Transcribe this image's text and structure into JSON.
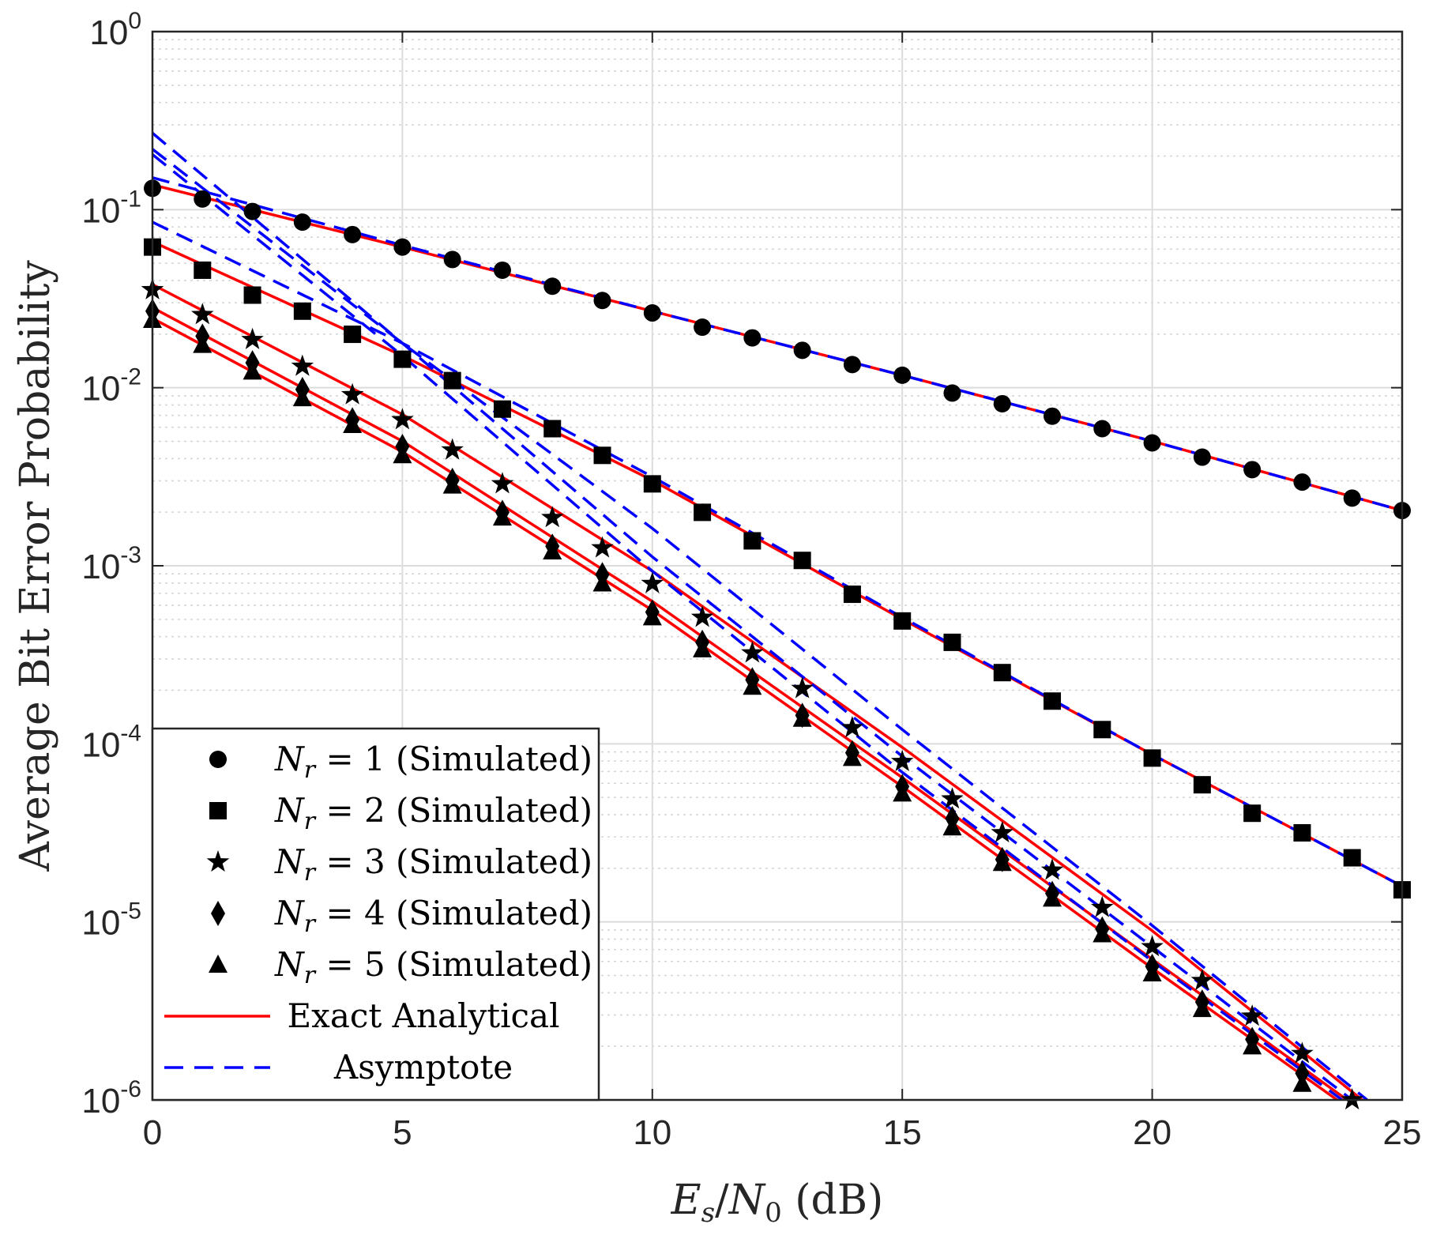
{
  "chart_data": {
    "type": "line",
    "title": "",
    "xlabel": "Es/N0 (dB)",
    "ylabel": "Average Bit Error Probability",
    "xlim": [
      0,
      25
    ],
    "ylim_log10": [
      -6,
      0
    ],
    "y_scale": "log",
    "grid": true,
    "minor_grid": true,
    "legend_position": "bottom-left",
    "x_ticks": [
      0,
      5,
      10,
      15,
      20,
      25
    ],
    "y_tick_labels": [
      {
        "base": "10",
        "exp": "0"
      },
      {
        "base": "10",
        "exp": "-1"
      },
      {
        "base": "10",
        "exp": "-2"
      },
      {
        "base": "10",
        "exp": "-3"
      },
      {
        "base": "10",
        "exp": "-4"
      },
      {
        "base": "10",
        "exp": "-5"
      },
      {
        "base": "10",
        "exp": "-6"
      }
    ],
    "legend": [
      {
        "label": "N_r = 1 (Simulated)",
        "marker": "circle"
      },
      {
        "label": "N_r = 2 (Simulated)",
        "marker": "square"
      },
      {
        "label": "N_r = 3 (Simulated)",
        "marker": "star"
      },
      {
        "label": "N_r = 4 (Simulated)",
        "marker": "diamond"
      },
      {
        "label": "N_r = 5 (Simulated)",
        "marker": "triangle"
      },
      {
        "label": "Exact Analytical",
        "line": "solid",
        "color": "#ff0000"
      },
      {
        "label": "Asymptote",
        "line": "dashed",
        "color": "#0000ff"
      }
    ],
    "series": [
      {
        "name": "N_r = 1",
        "marker": "circle",
        "x_max": 25,
        "log10_y": [
          -0.88,
          -0.94,
          -1.01,
          -1.07,
          -1.14,
          -1.21,
          -1.28,
          -1.34,
          -1.43,
          -1.51,
          -1.58,
          -1.66,
          -1.72,
          -1.79,
          -1.87,
          -1.93,
          -2.03,
          -2.09,
          -2.16,
          -2.23,
          -2.31,
          -2.39,
          -2.46,
          -2.53,
          -2.62,
          -2.69
        ]
      },
      {
        "name": "N_r = 2",
        "marker": "square",
        "x_max": 25,
        "log10_y": [
          -1.21,
          -1.34,
          -1.48,
          -1.57,
          -1.7,
          -1.84,
          -1.96,
          -2.12,
          -2.23,
          -2.38,
          -2.54,
          -2.7,
          -2.86,
          -2.97,
          -3.16,
          -3.31,
          -3.43,
          -3.6,
          -3.76,
          -3.92,
          -4.08,
          -4.23,
          -4.39,
          -4.5,
          -4.64,
          -4.82
        ]
      },
      {
        "name": "N_r = 3",
        "marker": "star",
        "x_max": 24,
        "log10_y": [
          -1.45,
          -1.59,
          -1.73,
          -1.88,
          -2.04,
          -2.18,
          -2.35,
          -2.54,
          -2.73,
          -2.9,
          -3.1,
          -3.29,
          -3.49,
          -3.69,
          -3.91,
          -4.1,
          -4.31,
          -4.5,
          -4.71,
          -4.92,
          -5.14,
          -5.33,
          -5.53,
          -5.74,
          -6.0
        ]
      },
      {
        "name": "N_r = 4",
        "marker": "diamond",
        "x_max": 23,
        "log10_y": [
          -1.57,
          -1.71,
          -1.86,
          -2.01,
          -2.18,
          -2.33,
          -2.52,
          -2.7,
          -2.89,
          -3.05,
          -3.26,
          -3.43,
          -3.64,
          -3.84,
          -4.05,
          -4.24,
          -4.42,
          -4.65,
          -4.84,
          -5.04,
          -5.25,
          -5.45,
          -5.66,
          -5.85
        ]
      },
      {
        "name": "N_r = 5",
        "marker": "triangle",
        "x_max": 23,
        "log10_y": [
          -1.62,
          -1.76,
          -1.91,
          -2.06,
          -2.21,
          -2.38,
          -2.55,
          -2.73,
          -2.92,
          -3.1,
          -3.29,
          -3.47,
          -3.68,
          -3.86,
          -4.08,
          -4.28,
          -4.47,
          -4.67,
          -4.87,
          -5.07,
          -5.29,
          -5.49,
          -5.7,
          -5.91
        ]
      }
    ],
    "analytical": [
      {
        "name": "N_r = 1",
        "points": [
          [
            0,
            -0.86
          ],
          [
            5,
            -1.21
          ],
          [
            10,
            -1.57
          ],
          [
            15,
            -1.93
          ],
          [
            20,
            -2.3
          ],
          [
            25,
            -2.69
          ]
        ]
      },
      {
        "name": "N_r = 2",
        "points": [
          [
            0,
            -1.18
          ],
          [
            5,
            -1.82
          ],
          [
            10,
            -2.52
          ],
          [
            15,
            -3.3
          ],
          [
            20,
            -4.06
          ],
          [
            25,
            -4.8
          ]
        ]
      },
      {
        "name": "N_r = 3",
        "points": [
          [
            0,
            -1.42
          ],
          [
            5,
            -2.15
          ],
          [
            10,
            -3.03
          ],
          [
            15,
            -4.02
          ],
          [
            20,
            -5.05
          ],
          [
            24.2,
            -6.0
          ]
        ]
      },
      {
        "name": "N_r = 4",
        "points": [
          [
            0,
            -1.55
          ],
          [
            5,
            -2.3
          ],
          [
            10,
            -3.2
          ],
          [
            15,
            -4.19
          ],
          [
            20,
            -5.21
          ],
          [
            23.9,
            -6.0
          ]
        ]
      },
      {
        "name": "N_r = 5",
        "points": [
          [
            0,
            -1.61
          ],
          [
            5,
            -2.36
          ],
          [
            10,
            -3.25
          ],
          [
            15,
            -4.24
          ],
          [
            20,
            -5.26
          ],
          [
            23.7,
            -6.0
          ]
        ]
      }
    ],
    "asymptote": [
      {
        "name": "N_r = 1",
        "points": [
          [
            0,
            -0.82
          ],
          [
            5,
            -1.2
          ],
          [
            10,
            -1.57
          ],
          [
            15,
            -1.93
          ],
          [
            20,
            -2.3
          ],
          [
            25,
            -2.69
          ]
        ]
      },
      {
        "name": "N_r = 2",
        "points": [
          [
            0,
            -1.07
          ],
          [
            5,
            -1.75
          ],
          [
            10,
            -2.5
          ],
          [
            15,
            -3.29
          ],
          [
            20,
            -4.06
          ],
          [
            25,
            -4.8
          ]
        ]
      },
      {
        "name": "N_r = 3",
        "points": [
          [
            0,
            -0.66
          ],
          [
            5,
            -1.75
          ],
          [
            10,
            -2.79
          ],
          [
            15,
            -3.92
          ],
          [
            20,
            -5.02
          ],
          [
            24.3,
            -6.0
          ]
        ]
      },
      {
        "name": "N_r = 4",
        "points": [
          [
            0,
            -0.57
          ],
          [
            5,
            -1.75
          ],
          [
            10,
            -2.95
          ],
          [
            15,
            -4.07
          ],
          [
            20,
            -5.14
          ],
          [
            24.0,
            -6.0
          ]
        ]
      },
      {
        "name": "N_r = 5",
        "points": [
          [
            0,
            -0.69
          ],
          [
            5,
            -1.82
          ],
          [
            10,
            -3.03
          ],
          [
            15,
            -4.16
          ],
          [
            20,
            -5.22
          ],
          [
            23.8,
            -6.0
          ]
        ]
      }
    ]
  }
}
